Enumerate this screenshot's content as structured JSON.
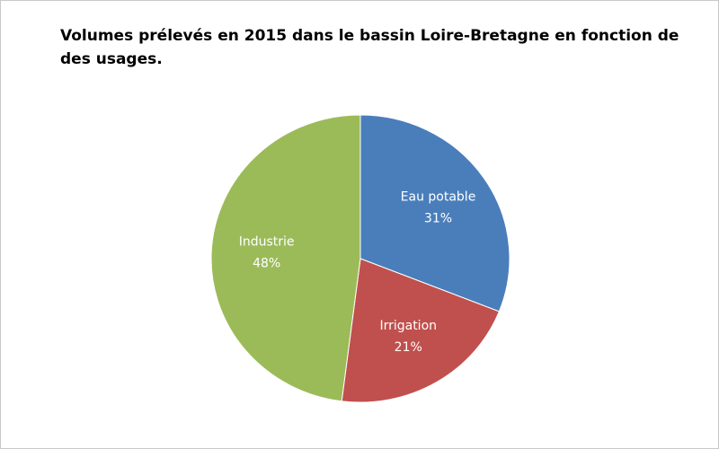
{
  "chart_data": {
    "type": "pie",
    "title": "Volumes prélevés en 2015 dans le bassin Loire-Bretagne en fonction de des usages.",
    "categories": [
      "Eau potable",
      "Irrigation",
      "Industrie"
    ],
    "values": [
      31,
      21,
      48
    ],
    "value_labels": [
      "31%",
      "21%",
      "48%"
    ],
    "colors": [
      "#4a7ebb",
      "#c0504d",
      "#9bbb59"
    ]
  }
}
